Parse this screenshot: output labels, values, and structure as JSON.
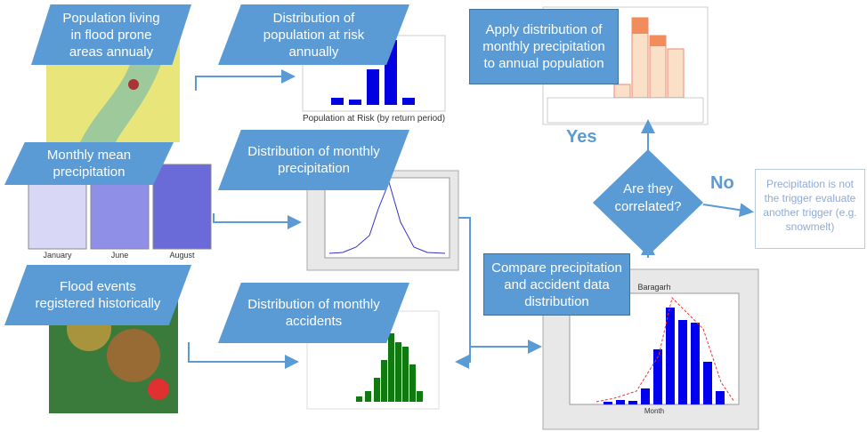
{
  "nodes": [
    {
      "label": "Population living in flood prone areas annualy"
    },
    {
      "label": "Distribution of population at risk annually"
    },
    {
      "label": "Apply distribution of monthly precipitation to annual population"
    },
    {
      "label": "Monthly mean precipitation"
    },
    {
      "label": "Distribution of monthly precipitation"
    },
    {
      "label": "Flood events registered historically"
    },
    {
      "label": "Distribution of monthly accidents"
    },
    {
      "label": "Compare precipitation and accident data distribution"
    }
  ],
  "decision": "Are they correlated?",
  "branches": {
    "yes": "Yes",
    "no": "No"
  },
  "note": "Precipitation is not the trigger evaluate another trigger (e.g. snowmelt)",
  "captions": {
    "population_chart": "Population at Risk (by return period)",
    "months": [
      "January",
      "June",
      "August"
    ],
    "comparison_title": "Baragarh",
    "comparison_axis": "Month"
  }
}
